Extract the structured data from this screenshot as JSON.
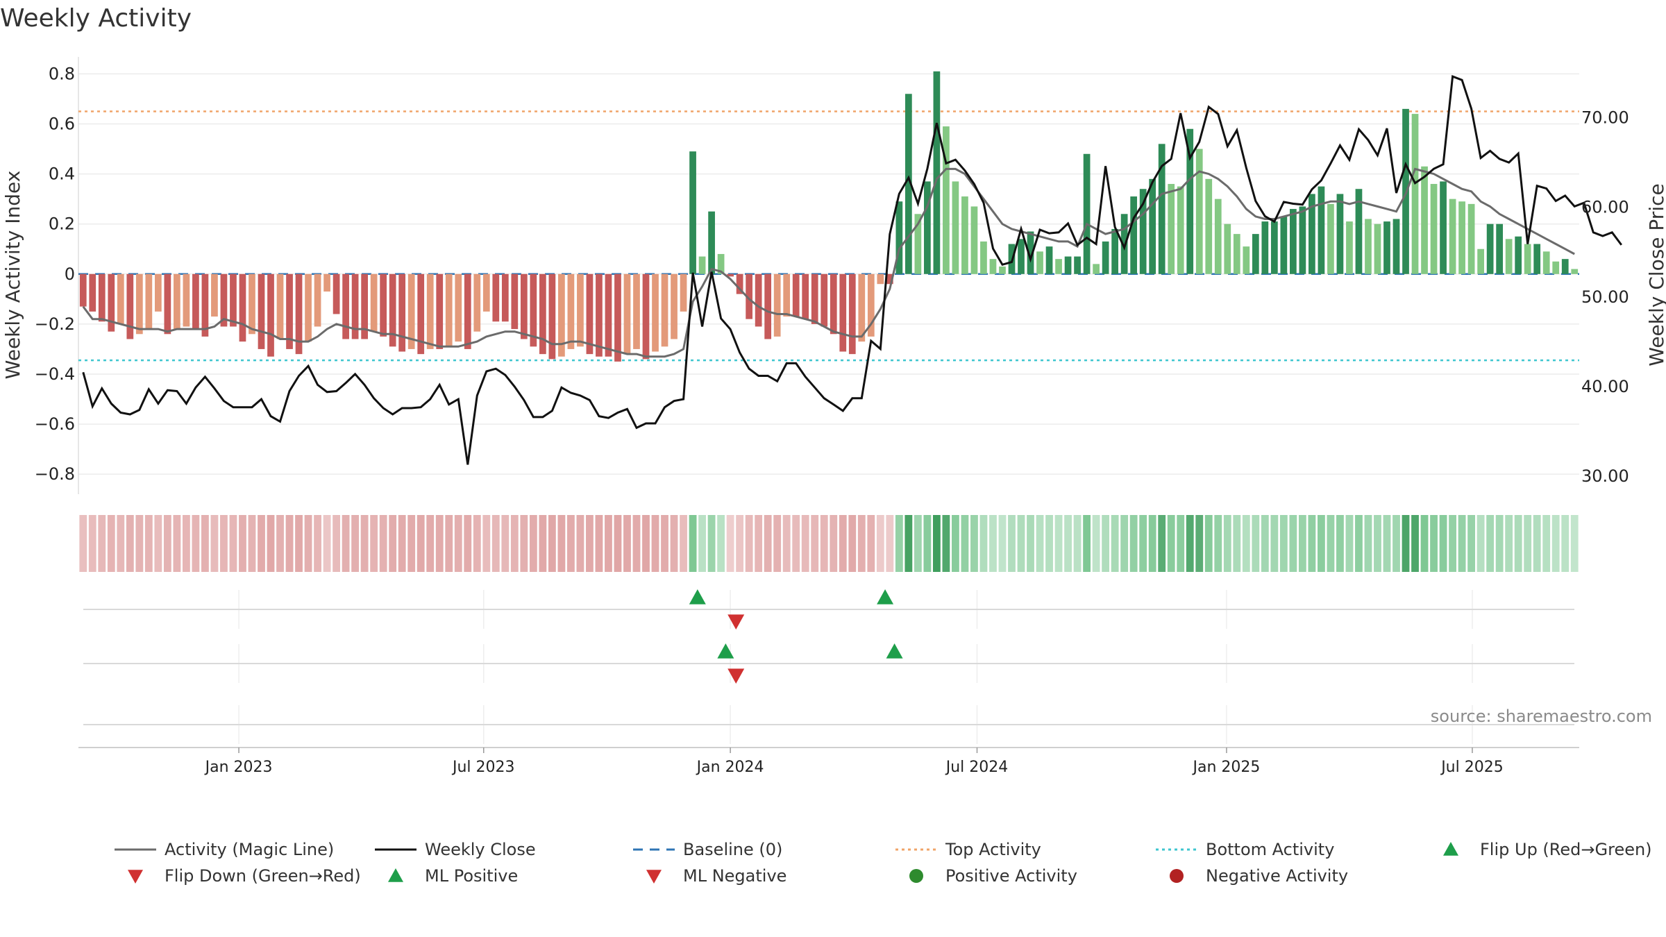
{
  "chart_data": {
    "type": "bar",
    "title": "Weekly Activity",
    "ylabel": "Weekly Activity Index",
    "y2label": "Weekly Close Price",
    "source": "source: sharemaestro.com",
    "ylim": [
      -0.88,
      0.84
    ],
    "y2lim": [
      28,
      76
    ],
    "yticks": [
      -0.8,
      -0.6,
      -0.4,
      -0.2,
      0,
      0.2,
      0.4,
      0.6,
      0.8
    ],
    "ytick_labels": [
      "−0.8",
      "−0.6",
      "−0.4",
      "−0.2",
      "0",
      "0.2",
      "0.4",
      "0.6",
      "0.8"
    ],
    "y2ticks": [
      30,
      40,
      50,
      60,
      70
    ],
    "y2tick_labels": [
      "30.00",
      "40.00",
      "50.00",
      "60.00",
      "70.00"
    ],
    "xticks": [
      {
        "week": 16.6,
        "label": "Jan 2023"
      },
      {
        "week": 42.7,
        "label": "Jul 2023"
      },
      {
        "week": 69,
        "label": "Jan 2024"
      },
      {
        "week": 95.3,
        "label": "Jul 2024"
      },
      {
        "week": 121.9,
        "label": "Jan 2025"
      },
      {
        "week": 148.1,
        "label": "Jul 2025"
      }
    ],
    "top_activity": 0.65,
    "bottom_activity": -0.345,
    "activity": [
      -0.13,
      -0.15,
      -0.19,
      -0.23,
      -0.2,
      -0.26,
      -0.24,
      -0.22,
      -0.15,
      -0.24,
      -0.22,
      -0.21,
      -0.22,
      -0.25,
      -0.17,
      -0.21,
      -0.21,
      -0.27,
      -0.24,
      -0.3,
      -0.33,
      -0.26,
      -0.3,
      -0.32,
      -0.27,
      -0.21,
      -0.07,
      -0.16,
      -0.26,
      -0.26,
      -0.26,
      -0.23,
      -0.25,
      -0.29,
      -0.31,
      -0.3,
      -0.32,
      -0.3,
      -0.3,
      -0.29,
      -0.27,
      -0.3,
      -0.23,
      -0.15,
      -0.19,
      -0.19,
      -0.22,
      -0.26,
      -0.29,
      -0.32,
      -0.34,
      -0.33,
      -0.3,
      -0.29,
      -0.32,
      -0.33,
      -0.33,
      -0.35,
      -0.32,
      -0.3,
      -0.34,
      -0.31,
      -0.29,
      -0.26,
      -0.15,
      0.49,
      0.07,
      0.25,
      0.08,
      -0.01,
      -0.08,
      -0.18,
      -0.21,
      -0.26,
      -0.25,
      -0.17,
      -0.17,
      -0.18,
      -0.2,
      -0.21,
      -0.24,
      -0.31,
      -0.32,
      -0.27,
      -0.25,
      -0.04,
      -0.04,
      0.29,
      0.72,
      0.24,
      0.37,
      0.81,
      0.59,
      0.37,
      0.31,
      0.27,
      0.13,
      0.06,
      0.03,
      0.12,
      0.14,
      0.17,
      0.09,
      0.11,
      0.06,
      0.07,
      0.07,
      0.48,
      0.04,
      0.13,
      0.18,
      0.24,
      0.31,
      0.34,
      0.38,
      0.52,
      0.36,
      0.35,
      0.58,
      0.5,
      0.38,
      0.3,
      0.2,
      0.16,
      0.11,
      0.16,
      0.21,
      0.21,
      0.23,
      0.26,
      0.27,
      0.32,
      0.35,
      0.28,
      0.32,
      0.21,
      0.34,
      0.22,
      0.2,
      0.21,
      0.22,
      0.66,
      0.64,
      0.43,
      0.36,
      0.37,
      0.3,
      0.29,
      0.28,
      0.1,
      0.2,
      0.2,
      0.14,
      0.15,
      0.12,
      0.12,
      0.09,
      0.05,
      0.06,
      0.02
    ],
    "magic_line": [
      -0.13,
      -0.18,
      -0.18,
      -0.19,
      -0.2,
      -0.21,
      -0.22,
      -0.22,
      -0.22,
      -0.23,
      -0.22,
      -0.22,
      -0.22,
      -0.22,
      -0.21,
      -0.18,
      -0.19,
      -0.2,
      -0.22,
      -0.23,
      -0.24,
      -0.26,
      -0.26,
      -0.27,
      -0.27,
      -0.25,
      -0.22,
      -0.2,
      -0.21,
      -0.22,
      -0.22,
      -0.23,
      -0.24,
      -0.24,
      -0.25,
      -0.26,
      -0.27,
      -0.28,
      -0.29,
      -0.29,
      -0.29,
      -0.28,
      -0.27,
      -0.25,
      -0.24,
      -0.23,
      -0.23,
      -0.24,
      -0.25,
      -0.26,
      -0.28,
      -0.28,
      -0.27,
      -0.27,
      -0.28,
      -0.29,
      -0.3,
      -0.31,
      -0.32,
      -0.32,
      -0.33,
      -0.33,
      -0.33,
      -0.32,
      -0.3,
      -0.11,
      -0.05,
      0.02,
      0.01,
      -0.02,
      -0.06,
      -0.1,
      -0.13,
      -0.15,
      -0.16,
      -0.16,
      -0.17,
      -0.18,
      -0.19,
      -0.21,
      -0.23,
      -0.24,
      -0.25,
      -0.25,
      -0.2,
      -0.14,
      -0.06,
      0.1,
      0.15,
      0.2,
      0.27,
      0.38,
      0.42,
      0.42,
      0.4,
      0.35,
      0.3,
      0.25,
      0.2,
      0.18,
      0.17,
      0.16,
      0.15,
      0.14,
      0.13,
      0.13,
      0.11,
      0.2,
      0.18,
      0.16,
      0.17,
      0.18,
      0.21,
      0.24,
      0.28,
      0.32,
      0.33,
      0.34,
      0.38,
      0.41,
      0.4,
      0.38,
      0.35,
      0.31,
      0.26,
      0.23,
      0.22,
      0.22,
      0.23,
      0.24,
      0.25,
      0.27,
      0.28,
      0.29,
      0.29,
      0.28,
      0.29,
      0.28,
      0.27,
      0.26,
      0.25,
      0.32,
      0.42,
      0.41,
      0.4,
      0.38,
      0.36,
      0.34,
      0.33,
      0.29,
      0.27,
      0.24,
      0.22,
      0.2,
      0.18,
      0.16,
      0.14,
      0.12,
      0.1,
      0.08
    ],
    "weekly_close": [
      41.6,
      37.8,
      39.8,
      38.1,
      37.1,
      36.9,
      37.4,
      39.7,
      38.1,
      39.6,
      39.5,
      38.1,
      39.9,
      41.1,
      39.8,
      38.4,
      37.7,
      37.7,
      37.7,
      38.6,
      36.7,
      36.1,
      39.5,
      41.2,
      42.3,
      40.2,
      39.4,
      39.5,
      40.4,
      41.4,
      40.2,
      38.7,
      37.6,
      36.9,
      37.6,
      37.6,
      37.7,
      38.6,
      40.2,
      38.0,
      38.6,
      31.3,
      39.0,
      41.7,
      42.0,
      41.3,
      40.0,
      38.5,
      36.6,
      36.6,
      37.3,
      39.9,
      39.3,
      39.0,
      38.5,
      36.7,
      36.5,
      37.1,
      37.5,
      35.4,
      35.9,
      35.9,
      37.7,
      38.4,
      38.6,
      52.7,
      46.7,
      52.8,
      47.6,
      46.4,
      43.8,
      42.0,
      41.2,
      41.2,
      40.6,
      42.6,
      42.6,
      41.1,
      39.9,
      38.7,
      38.0,
      37.3,
      38.7,
      38.7,
      45.1,
      44.2,
      57.0,
      61.5,
      63.3,
      60.4,
      64.3,
      69.4,
      64.9,
      65.3,
      64.1,
      62.6,
      60.5,
      55.4,
      53.6,
      53.9,
      57.6,
      54.2,
      57.5,
      57.1,
      57.2,
      58.2,
      55.8,
      56.6,
      55.9,
      64.6,
      57.8,
      55.5,
      58.8,
      60.4,
      62.8,
      64.6,
      65.4,
      70.5,
      65.5,
      67.3,
      71.2,
      70.4,
      66.8,
      68.6,
      64.4,
      60.7,
      59.0,
      58.4,
      60.6,
      60.4,
      60.3,
      62.0,
      63.0,
      64.9,
      66.9,
      65.3,
      68.7,
      67.5,
      65.8,
      68.8,
      61.6,
      64.8,
      62.7,
      63.4,
      64.3,
      64.8,
      74.6,
      74.2,
      71.0,
      65.5,
      66.3,
      65.4,
      65.0,
      66.0,
      55.9,
      62.4,
      62.1,
      60.7,
      61.3,
      60.1,
      60.5,
      57.2,
      56.8,
      57.2,
      55.8
    ],
    "color_strip": {
      "negative_color": "#e0a6a6",
      "positive_color": "#7fc894",
      "strong_positive_color": "#3f9e5d"
    },
    "signals": {
      "flip_up_weeks": [
        65.5,
        85.5
      ],
      "flip_down_weeks": [
        69.6
      ],
      "ml_positive_weeks": [
        68.5,
        86.5
      ],
      "ml_negative_weeks": [
        69.6
      ]
    },
    "colors": {
      "pos_strong": "#2e8b57",
      "pos_light": "#84c883",
      "neg_strong": "#c65a5a",
      "neg_light": "#e39a7a",
      "magic_line": "#6b6b6b",
      "close_line": "#111111",
      "baseline": "#2f75b5",
      "top": "#f0a468",
      "bottom": "#3ec6cf",
      "flip_up": "#1e9e4a",
      "flip_down": "#d03030"
    },
    "legend": [
      {
        "key": "activity",
        "label": "Activity (Magic Line)"
      },
      {
        "key": "close",
        "label": "Weekly Close"
      },
      {
        "key": "baseline",
        "label": "Baseline (0)"
      },
      {
        "key": "top",
        "label": "Top Activity"
      },
      {
        "key": "bottom",
        "label": "Bottom Activity"
      },
      {
        "key": "flipup",
        "label": "Flip Up (Red→Green)"
      },
      {
        "key": "flipdown",
        "label": "Flip Down (Green→Red)"
      },
      {
        "key": "mlpos",
        "label": "ML Positive"
      },
      {
        "key": "mlneg",
        "label": "ML Negative"
      },
      {
        "key": "posact",
        "label": "Positive Activity"
      },
      {
        "key": "negact",
        "label": "Negative Activity"
      }
    ]
  }
}
